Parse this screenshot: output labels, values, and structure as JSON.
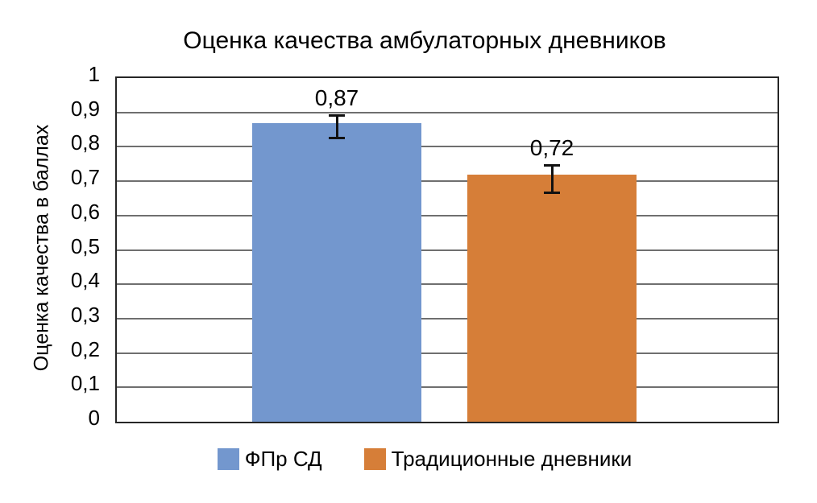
{
  "chart_data": {
    "type": "bar",
    "title": "Оценка качества амбулаторных дневников",
    "ylabel": "Оценка качества в баллах",
    "xlabel": "",
    "ylim": [
      0,
      1
    ],
    "grid": "horizontal",
    "legend_position": "bottom",
    "categories": [
      ""
    ],
    "yticks": [
      {
        "value": 0.0,
        "label": "0"
      },
      {
        "value": 0.1,
        "label": "0,1"
      },
      {
        "value": 0.2,
        "label": "0,2"
      },
      {
        "value": 0.3,
        "label": "0,3"
      },
      {
        "value": 0.4,
        "label": "0,4"
      },
      {
        "value": 0.5,
        "label": "0,5"
      },
      {
        "value": 0.6,
        "label": "0,6"
      },
      {
        "value": 0.7,
        "label": "0,7"
      },
      {
        "value": 0.8,
        "label": "0,8"
      },
      {
        "value": 0.9,
        "label": "0,9"
      },
      {
        "value": 1.0,
        "label": "1"
      }
    ],
    "series": [
      {
        "name": "ФПр СД",
        "value": 0.87,
        "value_label": "0,87",
        "error_top": 0.893,
        "error_bottom": 0.824,
        "color": "#7397CE"
      },
      {
        "name": "Традиционные дневники",
        "value": 0.72,
        "value_label": "0,72",
        "error_top": 0.747,
        "error_bottom": 0.664,
        "color": "#D67E38"
      }
    ]
  },
  "colors": {
    "gridline": "#6F6F6F",
    "frame": "#262626",
    "error_bar": "#111111",
    "background": "#FFFFFF"
  }
}
